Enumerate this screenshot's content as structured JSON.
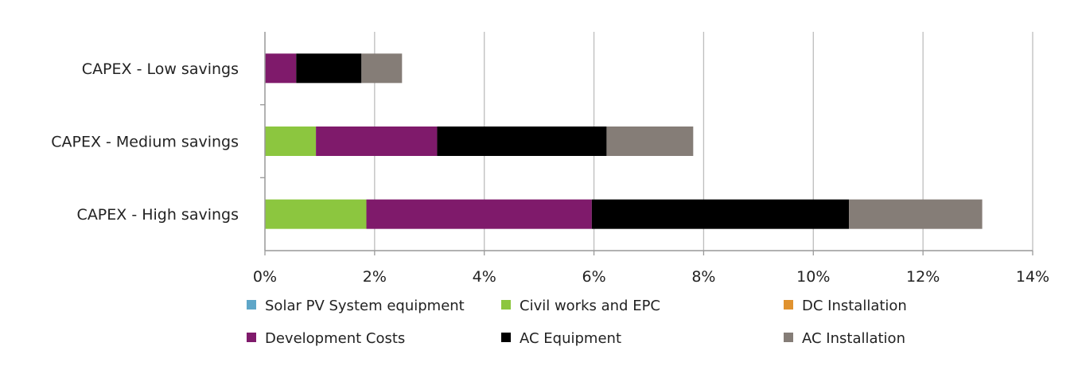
{
  "chart_data": {
    "type": "bar",
    "orientation": "horizontal",
    "stacked": true,
    "title": "",
    "xlabel": "",
    "ylabel": "",
    "xlim": [
      0,
      14
    ],
    "x_unit": "%",
    "x_ticks": [
      "0%",
      "2%",
      "4%",
      "6%",
      "8%",
      "10%",
      "12%",
      "14%"
    ],
    "grid": "vertical",
    "legend_position": "bottom",
    "categories": [
      "CAPEX - Low savings",
      "CAPEX - Medium savings",
      "CAPEX - High savings"
    ],
    "series": [
      {
        "name": "Solar PV System equipment",
        "color": "#5ea6c8",
        "values": [
          0,
          0,
          0
        ]
      },
      {
        "name": "Civil works and EPC",
        "color": "#8cc63f",
        "values": [
          0,
          0.93,
          1.85
        ]
      },
      {
        "name": "DC Installation",
        "color": "#e0922f",
        "values": [
          0,
          0,
          0
        ]
      },
      {
        "name": "Development Costs",
        "color": "#7f1a6b",
        "values": [
          0.57,
          2.21,
          4.11
        ]
      },
      {
        "name": "AC Equipment",
        "color": "#000000",
        "values": [
          1.19,
          3.09,
          4.69
        ]
      },
      {
        "name": "AC Installation",
        "color": "#857d77",
        "values": [
          0.74,
          1.58,
          2.43
        ]
      }
    ]
  }
}
